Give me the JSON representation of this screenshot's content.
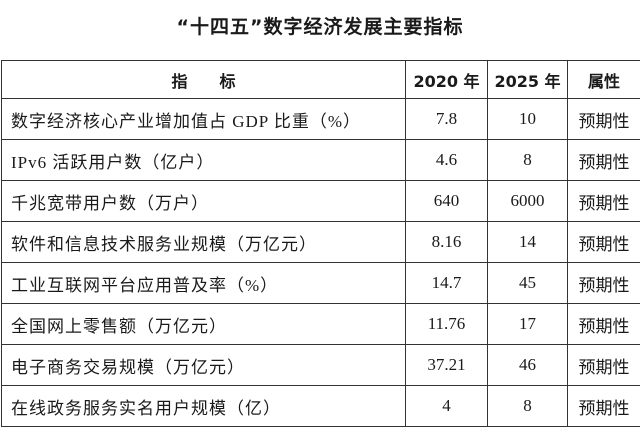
{
  "title": "“十四五”数字经济发展主要指标",
  "table": {
    "header": [
      "指　　标",
      "2020 年",
      "2025 年",
      "属性"
    ],
    "rows": [
      [
        "数字经济核心产业增加值占 GDP 比重（%）",
        "7.8",
        "10",
        "预期性"
      ],
      [
        "IPv6 活跃用户数（亿户）",
        "4.6",
        "8",
        "预期性"
      ],
      [
        "千兆宽带用户数（万户）",
        "640",
        "6000",
        "预期性"
      ],
      [
        "软件和信息技术服务业规模（万亿元）",
        "8.16",
        "14",
        "预期性"
      ],
      [
        "工业互联网平台应用普及率（%）",
        "14.7",
        "45",
        "预期性"
      ],
      [
        "全国网上零售额（万亿元）",
        "11.76",
        "17",
        "预期性"
      ],
      [
        "电子商务交易规模（万亿元）",
        "37.21",
        "46",
        "预期性"
      ],
      [
        "在线政务服务实名用户规模（亿）",
        "4",
        "8",
        "预期性"
      ]
    ]
  }
}
